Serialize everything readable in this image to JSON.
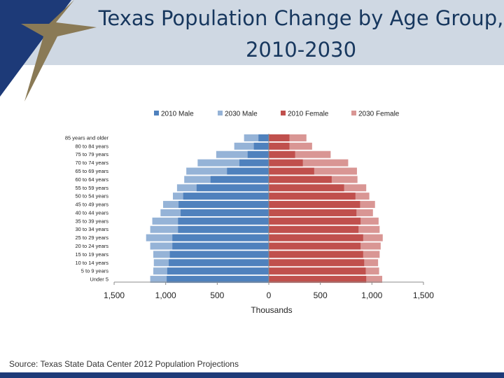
{
  "slide": {
    "title": "Texas Population Change by Age Group,\n2010-2030",
    "source": "Source: Texas State Data Center 2012 Population Projections"
  },
  "colors": {
    "header_band": "#cfd8e3",
    "star": "#8a7a56",
    "navy": "#1d3a78",
    "title": "#17375e"
  },
  "chart_data": {
    "type": "bar",
    "orientation": "horizontal",
    "xlabel": "Thousands",
    "xlim": [
      -1500,
      1500
    ],
    "xticks": [
      -1500,
      -1000,
      -500,
      0,
      500,
      1000,
      1500
    ],
    "xtick_labels": [
      "1,500",
      "1,000",
      "500",
      "0",
      "500",
      "1,000",
      "1,500"
    ],
    "legend_position": "top",
    "categories": [
      "Under 5",
      "5 to 9 years",
      "10 to 14 years",
      "15 to 19 years",
      "20 to 24 years",
      "25 to 29 years",
      "30 to 34 years",
      "35 to 39 years",
      "40 to 44 years",
      "45 to 49 years",
      "50 to 54 years",
      "55 to 59 years",
      "60 to 64 years",
      "65 to 69 years",
      "70 to 74 years",
      "75 to 79 years",
      "80 to 84 years",
      "85 years and older"
    ],
    "series": [
      {
        "name": "2010 Male",
        "side": "left",
        "color": "#4f81bd",
        "values": [
          990,
          985,
          970,
          960,
          935,
          935,
          880,
          880,
          855,
          875,
          830,
          700,
          565,
          405,
          285,
          205,
          145,
          100
        ]
      },
      {
        "name": "2030 Male",
        "side": "left",
        "color": "#95b3d7",
        "values": [
          1150,
          1120,
          1115,
          1120,
          1150,
          1190,
          1150,
          1130,
          1050,
          1025,
          930,
          890,
          820,
          800,
          690,
          510,
          335,
          240
        ]
      },
      {
        "name": "2010 Female",
        "side": "right",
        "color": "#c0504d",
        "values": [
          945,
          940,
          925,
          915,
          890,
          915,
          870,
          890,
          850,
          885,
          840,
          730,
          610,
          440,
          330,
          255,
          200,
          200
        ]
      },
      {
        "name": "2030 Female",
        "side": "right",
        "color": "#d99694",
        "values": [
          1100,
          1070,
          1060,
          1075,
          1085,
          1105,
          1075,
          1065,
          1010,
          1030,
          975,
          945,
          860,
          855,
          770,
          600,
          420,
          365
        ]
      }
    ]
  }
}
